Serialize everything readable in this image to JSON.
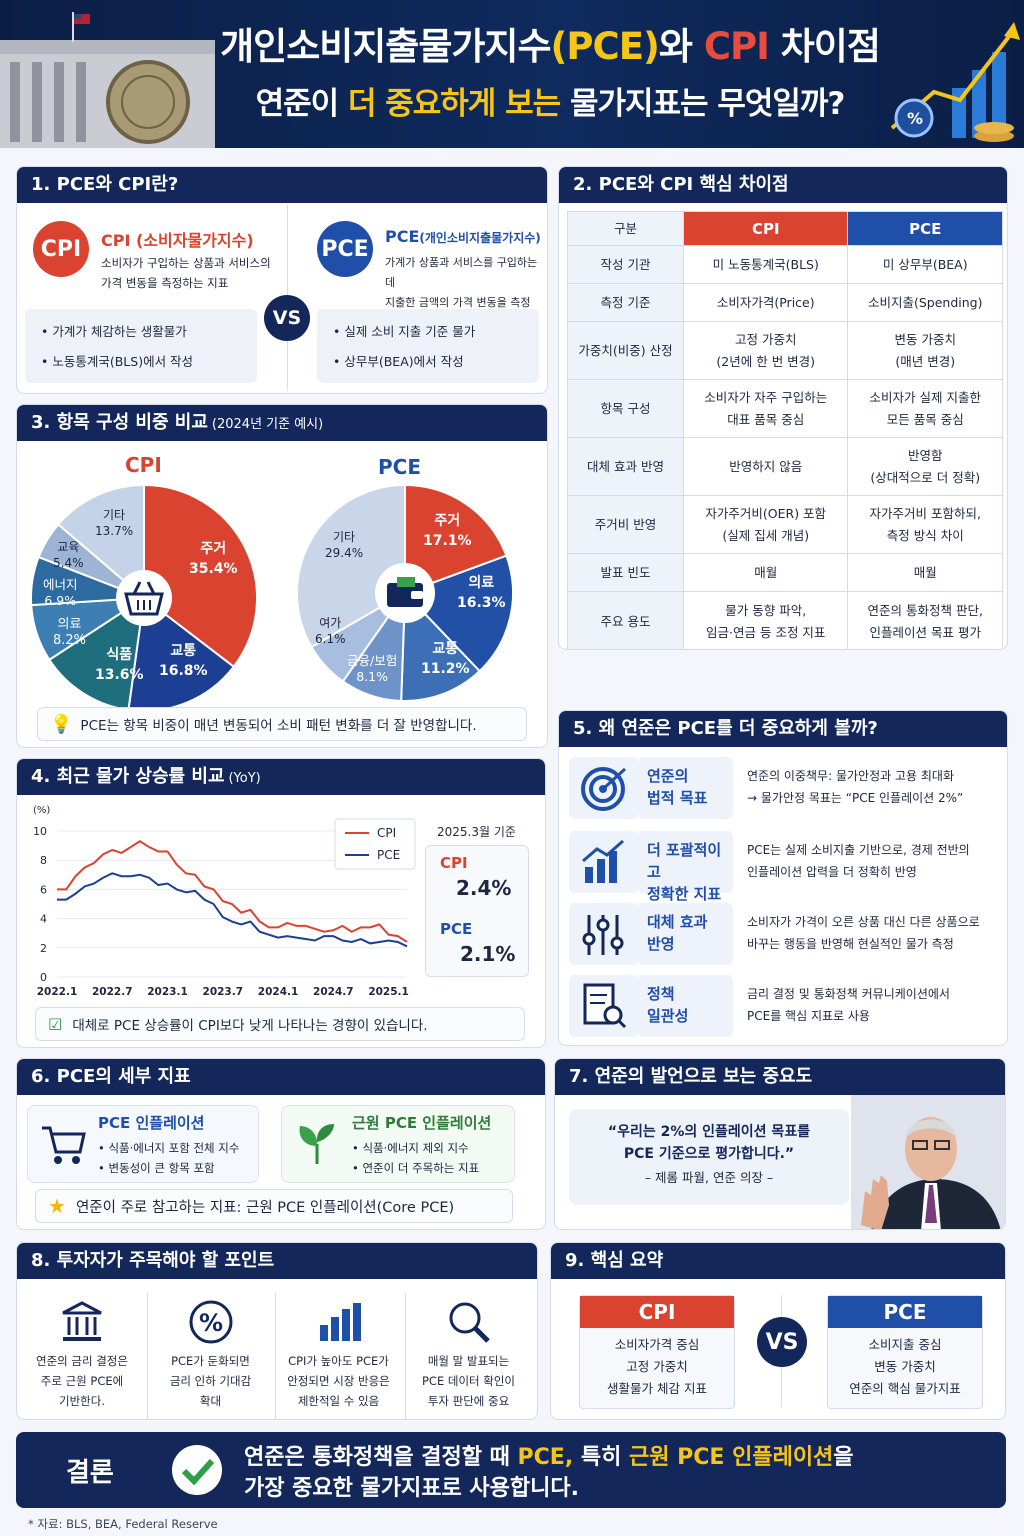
{
  "header": {
    "title_a": "개인소비지출물가지수",
    "title_b": "(PCE)",
    "title_c": "와 ",
    "title_d": "CPI",
    "title_e": " 차이점",
    "sub_a": "연준이 ",
    "sub_b": "더 중요하게 보는",
    "sub_c": " 물가지표는 무엇일까?"
  },
  "s1": {
    "title": "1. PCE와 CPI란?",
    "cpi": {
      "badge": "CPI",
      "name": "CPI (소비자물가지수)",
      "desc1": "소비자가 구입하는 상품과 서비스의",
      "desc2": "가격 변동을 측정하는 지표",
      "b1": "가계가 체감하는 생활물가",
      "b2": "노동통계국(BLS)에서 작성"
    },
    "vs": "VS",
    "pce": {
      "badge": "PCE",
      "name": "PCE",
      "name_small": "(개인소비지출물가지수)",
      "desc1": "가계가 상품과 서비스를 구입하는 데",
      "desc2": "지출한 금액의 가격 변동을 측정",
      "b1": "실제 소비 지출 기준 물가",
      "b2": "상무부(BEA)에서 작성"
    }
  },
  "s2": {
    "title": "2. PCE와 CPI 핵심 차이점",
    "head": [
      "구분",
      "CPI",
      "PCE"
    ],
    "rows": [
      [
        "작성 기관",
        "미 노동통계국(BLS)",
        "",
        "미 상무부(BEA)",
        ""
      ],
      [
        "측정 기준",
        "소비자가격(Price)",
        "",
        "소비지출(Spending)",
        ""
      ],
      [
        "가중치(비중) 산정",
        "고정 가중치",
        "(2년에 한 번 변경)",
        "변동 가중치",
        "(매년 변경)"
      ],
      [
        "항목 구성",
        "소비자가 자주 구입하는",
        "대표 품목 중심",
        "소비자가 실제 지출한",
        "모든 품목 중심"
      ],
      [
        "대체 효과 반영",
        "반영하지 않음",
        "",
        "반영함",
        "(상대적으로 더 정확)"
      ],
      [
        "주거비 반영",
        "자가주거비(OER) 포함",
        "(실제 집세 개념)",
        "자가주거비 포함하되,",
        "측정 방식 차이"
      ],
      [
        "발표 빈도",
        "매월",
        "",
        "매월",
        ""
      ],
      [
        "주요 용도",
        "물가 동향 파악,",
        "임금·연금 등 조정 지표",
        "연준의 통화정책 판단,",
        "인플레이션 목표 평가"
      ]
    ]
  },
  "s3": {
    "title": "3. 항목 구성 비중 비교",
    "title_small": "(2024년 기준 예시)",
    "cpi_title": "CPI",
    "pce_title": "PCE",
    "cpi": [
      {
        "name": "주거",
        "value": 35.4,
        "pct": "35.4%",
        "color": "#d9432f"
      },
      {
        "name": "교통",
        "value": 16.8,
        "pct": "16.8%",
        "color": "#1c3f94"
      },
      {
        "name": "식품",
        "value": 13.6,
        "pct": "13.6%",
        "color": "#1e6e7e"
      },
      {
        "name": "의료",
        "value": 8.2,
        "pct": "8.2%",
        "color": "#3e7fb3"
      },
      {
        "name": "에너지",
        "value": 6.9,
        "pct": "6.9%",
        "color": "#2d6aa0"
      },
      {
        "name": "교육",
        "value": 5.4,
        "pct": "5.4%",
        "color": "#9db4d4"
      },
      {
        "name": "기타",
        "value": 13.7,
        "pct": "13.7%",
        "color": "#c4d3e8"
      }
    ],
    "pce": [
      {
        "name": "주거",
        "value": 17.1,
        "pct": "17.1%",
        "color": "#d9432f"
      },
      {
        "name": "의료",
        "value": 16.3,
        "pct": "16.3%",
        "color": "#2150a6"
      },
      {
        "name": "교통",
        "value": 11.2,
        "pct": "11.2%",
        "color": "#3c6fb6"
      },
      {
        "name": "금융/보험",
        "value": 8.1,
        "pct": "8.1%",
        "color": "#6e93c9"
      },
      {
        "name": "여가",
        "value": 6.1,
        "pct": "6.1%",
        "color": "#a8bee0"
      },
      {
        "name": "기타",
        "value": 29.4,
        "pct": "29.4%",
        "color": "#c9d6ea"
      }
    ],
    "note": "PCE는 항목 비중이 매년 변동되어 소비 패턴 변화를 더 잘 반영합니다."
  },
  "s4": {
    "title": "4. 최근 물가 상승률 비교",
    "title_small": "(YoY)",
    "unit": "(%)",
    "legend_cpi": "CPI",
    "legend_pce": "PCE",
    "asof": "2025.3월 기준",
    "cpi_label": "CPI",
    "cpi_value": "2.4%",
    "pce_label": "PCE",
    "pce_value": "2.1%",
    "note": "대체로 PCE 상승률이 CPI보다 낮게 나타나는 경향이 있습니다."
  },
  "chart_data": {
    "type": "line",
    "title": "4. 최근 물가 상승률 비교 (YoY)",
    "ylabel": "(%)",
    "ylim": [
      0,
      10
    ],
    "yticks": [
      "0",
      "2",
      "4",
      "6",
      "8",
      "10"
    ],
    "xticks": [
      "2022.1",
      "2022.7",
      "2023.1",
      "2023.7",
      "2024.1",
      "2024.7",
      "2025.1"
    ],
    "x": [
      "2022.1",
      "2022.2",
      "2022.3",
      "2022.4",
      "2022.5",
      "2022.6",
      "2022.7",
      "2022.8",
      "2022.9",
      "2022.10",
      "2022.11",
      "2022.12",
      "2023.1",
      "2023.2",
      "2023.3",
      "2023.4",
      "2023.5",
      "2023.6",
      "2023.7",
      "2023.8",
      "2023.9",
      "2023.10",
      "2023.11",
      "2023.12",
      "2024.1",
      "2024.2",
      "2024.3",
      "2024.4",
      "2024.5",
      "2024.6",
      "2024.7",
      "2024.8",
      "2024.9",
      "2024.10",
      "2024.11",
      "2024.12",
      "2025.1",
      "2025.2",
      "2025.3"
    ],
    "series": [
      {
        "name": "CPI",
        "color": "#d9432f",
        "values": [
          6.0,
          6.0,
          6.9,
          7.5,
          7.8,
          8.4,
          8.7,
          8.5,
          8.9,
          9.3,
          8.9,
          8.6,
          8.6,
          7.7,
          7.1,
          7.0,
          6.2,
          6.0,
          5.2,
          5.0,
          4.4,
          4.6,
          3.8,
          3.4,
          3.4,
          3.7,
          3.5,
          3.5,
          3.3,
          3.1,
          3.2,
          3.5,
          3.1,
          3.4,
          3.4,
          3.6,
          2.9,
          2.8,
          2.4
        ]
      },
      {
        "name": "PCE",
        "color": "#1c3f94",
        "values": [
          5.3,
          5.3,
          5.7,
          6.2,
          6.4,
          6.8,
          7.1,
          6.9,
          6.9,
          7.0,
          6.8,
          6.3,
          6.4,
          6.0,
          5.8,
          5.9,
          5.3,
          5.0,
          4.1,
          3.8,
          3.6,
          3.8,
          3.1,
          2.9,
          2.7,
          2.8,
          2.7,
          2.6,
          2.5,
          2.8,
          2.8,
          2.5,
          2.4,
          2.6,
          2.3,
          2.4,
          2.5,
          2.4,
          2.1
        ]
      }
    ]
  },
  "s5": {
    "title": "5. 왜 연준은 PCE를 더 중요하게 볼까?",
    "items": [
      {
        "l1": "연준의",
        "l2": "법적 목표",
        "t1": "연준의 이중책무: 물가안정과 고용 최대화",
        "t2": "→ 물가안정 목표는 “PCE 인플레이션 2%”"
      },
      {
        "l1": "더 포괄적이고",
        "l2": "정확한 지표",
        "t1": "PCE는 실제 소비지출 기반으로, 경제 전반의",
        "t2": "인플레이션 압력을 더 정확히 반영"
      },
      {
        "l1": "대체 효과",
        "l2": "반영",
        "t1": "소비자가 가격이 오른 상품 대신 다른 상품으로",
        "t2": "바꾸는 행동을 반영해 현실적인 물가 측정"
      },
      {
        "l1": "정책",
        "l2": "일관성",
        "t1": "금리 결정 및 통화정책 커뮤니케이션에서",
        "t2": "PCE를 핵심 지표로 사용"
      }
    ]
  },
  "s6": {
    "title": "6. PCE의 세부 지표",
    "a_title": "PCE 인플레이션",
    "a_b1": "• 식품·에너지 포함 전체 지수",
    "a_b2": "• 변동성이 큰 항목 포함",
    "b_title": "근원 PCE 인플레이션",
    "b_b1": "• 식품·에너지 제외 지수",
    "b_b2": "• 연준이 더 주목하는 지표",
    "note": "연준이 주로 참고하는 지표: 근원 PCE 인플레이션(Core PCE)"
  },
  "s7": {
    "title": "7. 연준의 발언으로 보는 중요도",
    "q1": "“우리는 2%의 인플레이션 목표를",
    "q2": "PCE 기준으로 평가합니다.”",
    "who": "– 제롬 파월, 연준 의장 –"
  },
  "s8": {
    "title": "8. 투자자가 주목해야 할 포인트",
    "items": [
      {
        "icon": "bank-icon",
        "l1": "연준의 금리 결정은",
        "l2": "주로 근원 PCE에",
        "l3": "기반한다."
      },
      {
        "icon": "percent-icon",
        "l1": "PCE가 둔화되면",
        "l2": "금리 인하 기대감",
        "l3": "확대"
      },
      {
        "icon": "bar-chart-icon",
        "l1": "CPI가 높아도 PCE가",
        "l2": "안정되면 시장 반응은",
        "l3": "제한적일 수 있음"
      },
      {
        "icon": "magnifier-icon",
        "l1": "매월 말 발표되는",
        "l2": "PCE 데이터 확인이",
        "l3": "투자 판단에 중요"
      }
    ]
  },
  "s9": {
    "title": "9. 핵심 요약",
    "cpi": {
      "head": "CPI",
      "l1": "소비자가격 중심",
      "l2": "고정 가중치",
      "l3": "생활물가 체감 지표"
    },
    "vs": "VS",
    "pce": {
      "head": "PCE",
      "l1": "소비지출 중심",
      "l2": "변동 가중치",
      "l3": "연준의 핵심 물가지표"
    }
  },
  "conclusion": {
    "label": "결론",
    "a": "연준은 통화정책을 결정할 때 ",
    "b": "PCE, ",
    "c": "특히 ",
    "d": "근원 PCE 인플레이션",
    "e": "을",
    "line2": "가장 중요한 물가지표로 사용합니다."
  },
  "source": "* 자료: BLS, BEA, Federal Reserve",
  "colors": {
    "navy": "#13275a",
    "cpi_red": "#d9432f",
    "pce_blue": "#1f4fa8",
    "yellow": "#f5c518"
  }
}
